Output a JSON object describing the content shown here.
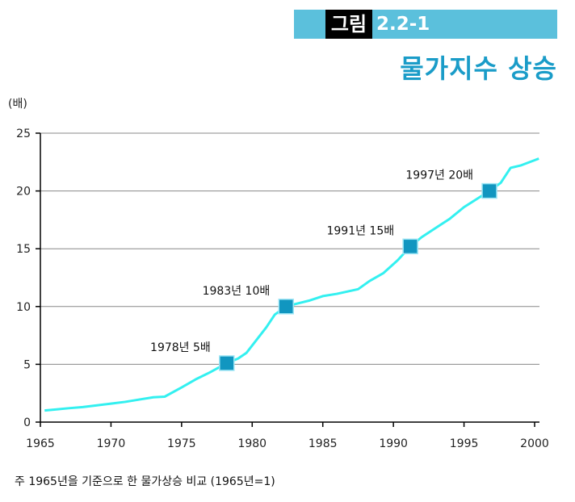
{
  "figure": {
    "tag": "그림",
    "number": "2.2-1",
    "title": "물가지수 상승"
  },
  "note": "주 1965년을 기준으로 한 물가상승 비교 (1965년=1)",
  "colors": {
    "header_bar": "#5bc0dc",
    "title": "#1a9cc8",
    "line": "#33f0f0",
    "marker": "#1196c0"
  },
  "chart_data": {
    "type": "line",
    "title": "물가지수 상승",
    "xlabel": "",
    "ylabel": "(배)",
    "xlim": [
      1965,
      2000
    ],
    "ylim": [
      0,
      25
    ],
    "xticks": [
      1965,
      1970,
      1975,
      1980,
      1985,
      1990,
      1995,
      2000
    ],
    "yticks": [
      0,
      5,
      10,
      15,
      20,
      25
    ],
    "grid": true,
    "series": [
      {
        "name": "물가지수",
        "x": [
          1965.3,
          1967,
          1968,
          1969,
          1970,
          1971,
          1972,
          1973,
          1973.8,
          1975,
          1976,
          1977,
          1978.2,
          1979,
          1979.6,
          1980.3,
          1981,
          1981.6,
          1982.4,
          1983,
          1984,
          1985,
          1986,
          1987.5,
          1988.3,
          1989.3,
          1990.3,
          1991.2,
          1992,
          1993,
          1994,
          1995,
          1996.8,
          1997.6,
          1998.3,
          1999,
          2000.3
        ],
        "y": [
          1.0,
          1.2,
          1.3,
          1.45,
          1.6,
          1.75,
          1.95,
          2.15,
          2.2,
          3.0,
          3.7,
          4.3,
          5.1,
          5.5,
          6.0,
          7.1,
          8.2,
          9.3,
          10.0,
          10.2,
          10.5,
          10.9,
          11.1,
          11.5,
          12.2,
          12.9,
          14.0,
          15.2,
          16.0,
          16.8,
          17.6,
          18.6,
          20.0,
          20.7,
          22.0,
          22.2,
          22.8
        ]
      }
    ],
    "annotations": [
      {
        "x": 1978.2,
        "y": 5.1,
        "label": "1978년 5배"
      },
      {
        "x": 1982.4,
        "y": 10.0,
        "label": "1983년 10배"
      },
      {
        "x": 1991.2,
        "y": 15.2,
        "label": "1991년 15배"
      },
      {
        "x": 1996.8,
        "y": 20.0,
        "label": "1997년 20배"
      }
    ]
  }
}
